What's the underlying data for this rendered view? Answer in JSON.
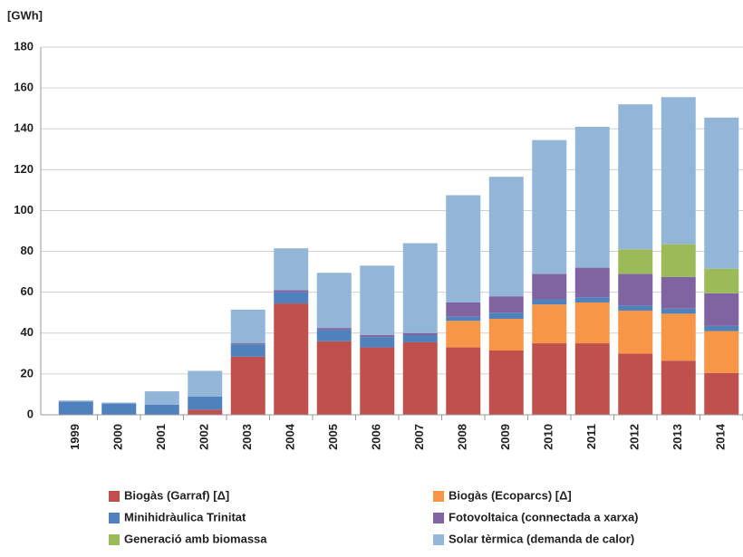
{
  "chart_data": {
    "type": "stacked_bar",
    "y_label": "[GWh]",
    "categories": [
      "1999",
      "2000",
      "2001",
      "2002",
      "2003",
      "2004",
      "2005",
      "2006",
      "2007",
      "2008",
      "2009",
      "2010",
      "2011",
      "2012",
      "2013",
      "2014"
    ],
    "series": [
      {
        "name": "Biogàs (Garraf)  [Δ]",
        "color": "#c0504d",
        "values": [
          0,
          0,
          0,
          2.5,
          28.5,
          54.5,
          36,
          33,
          35.5,
          33,
          31.5,
          35,
          35,
          30,
          26.5,
          20.5
        ]
      },
      {
        "name": "Biogàs (Ecoparcs)  [Δ]",
        "color": "#f79646",
        "values": [
          0,
          0,
          0,
          0,
          0,
          0,
          0,
          0,
          0,
          13,
          15.5,
          19,
          20,
          21,
          23,
          20.5
        ]
      },
      {
        "name": "Minihidràulica Trinitat",
        "color": "#4f81bd",
        "values": [
          6.5,
          5.5,
          5,
          6.5,
          6,
          5.5,
          5.5,
          5,
          3.5,
          2,
          3,
          2.5,
          2.5,
          2.5,
          2.5,
          2.5
        ]
      },
      {
        "name": "Fotovoltaica (connectada a xarxa)",
        "color": "#8064a2",
        "values": [
          0,
          0,
          0,
          0,
          0.5,
          1,
          1,
          1,
          1,
          7,
          8,
          12.5,
          14.5,
          15.5,
          15.5,
          16
        ]
      },
      {
        "name": "Generació amb biomassa",
        "color": "#9bbb59",
        "values": [
          0,
          0,
          0,
          0,
          0,
          0,
          0,
          0,
          0,
          0,
          0,
          0,
          0,
          12,
          16,
          12
        ]
      },
      {
        "name": "Solar tèrmica (demanda de calor)",
        "color": "#93b5d8",
        "values": [
          0.5,
          0.5,
          6.5,
          12.5,
          16.5,
          20.5,
          27,
          34,
          44,
          52.5,
          58.5,
          65.5,
          69,
          71,
          72,
          74
        ]
      }
    ],
    "ylim": [
      0,
      180
    ],
    "yticks": [
      0,
      20,
      40,
      60,
      80,
      100,
      120,
      140,
      160,
      180
    ],
    "grid": true
  }
}
